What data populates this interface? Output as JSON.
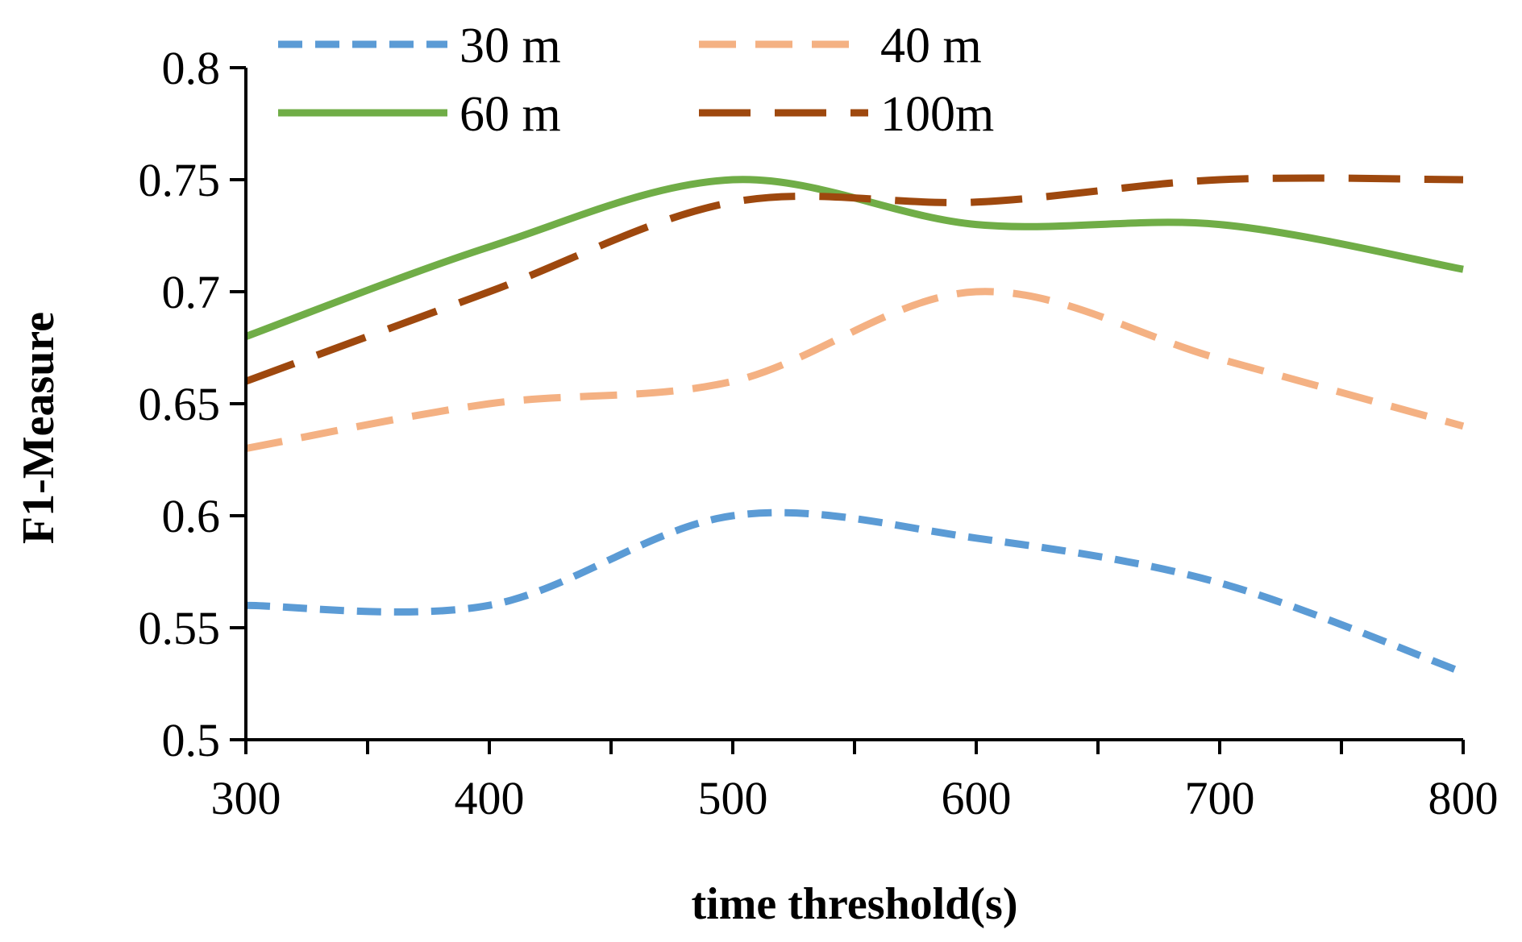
{
  "chart_data": {
    "type": "line",
    "title": "",
    "xlabel": "time threshold(s)",
    "ylabel": "F1-Measure",
    "x": [
      300,
      400,
      500,
      600,
      700,
      800
    ],
    "xlim": [
      300,
      800
    ],
    "ylim": [
      0.5,
      0.8
    ],
    "x_ticks": [
      "300",
      "400",
      "500",
      "600",
      "700",
      "800"
    ],
    "y_ticks": [
      "0.5",
      "0.55",
      "0.6",
      "0.65",
      "0.7",
      "0.75",
      "0.8"
    ],
    "grid": false,
    "legend_position": "top",
    "series": [
      {
        "name": "30 m",
        "color": "#5b9bd5",
        "style": "short-dash",
        "values": [
          0.56,
          0.56,
          0.6,
          0.59,
          0.57,
          0.53
        ]
      },
      {
        "name": "40 m",
        "color": "#f4b183",
        "style": "dash",
        "values": [
          0.63,
          0.65,
          0.66,
          0.7,
          0.67,
          0.64
        ]
      },
      {
        "name": "60 m",
        "color": "#70ad47",
        "style": "solid",
        "values": [
          0.68,
          0.72,
          0.75,
          0.73,
          0.73,
          0.71
        ]
      },
      {
        "name": "100m",
        "color": "#9e480e",
        "style": "long-dash",
        "values": [
          0.66,
          0.7,
          0.74,
          0.74,
          0.75,
          0.75
        ]
      }
    ]
  }
}
